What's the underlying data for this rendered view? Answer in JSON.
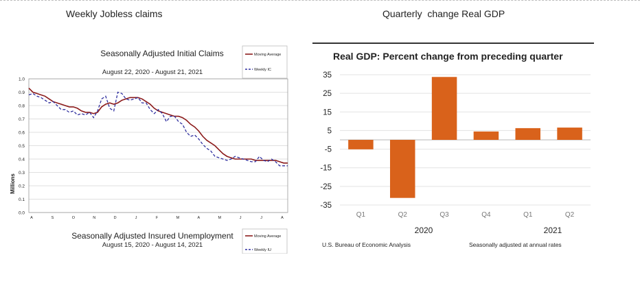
{
  "captions": {
    "left": "Weekly Jobless claims",
    "right": "Quarterly  change Real GDP"
  },
  "chart_data": [
    {
      "type": "line",
      "title": "Seasonally Adjusted Initial Claims",
      "subtitle": "August 22, 2020 - August 21, 2021",
      "ylabel": "Millions",
      "xlabel": "",
      "ylim": [
        0,
        1.0
      ],
      "yticks": [
        "0.0",
        "0.1",
        "0.2",
        "0.3",
        "0.4",
        "0.5",
        "0.6",
        "0.7",
        "0.8",
        "0.9",
        "1.0"
      ],
      "xticks": [
        "A",
        "S",
        "O",
        "N",
        "D",
        "J",
        "F",
        "M",
        "A",
        "M",
        "J",
        "J",
        "A"
      ],
      "grid": true,
      "legend": [
        "Moving Average",
        "Weekly IC"
      ],
      "series": [
        {
          "name": "Moving Average",
          "color": "#8b1a1a",
          "style": "solid",
          "values": [
            0.93,
            0.9,
            0.89,
            0.88,
            0.87,
            0.85,
            0.83,
            0.82,
            0.81,
            0.8,
            0.79,
            0.79,
            0.78,
            0.76,
            0.75,
            0.75,
            0.74,
            0.75,
            0.79,
            0.81,
            0.82,
            0.81,
            0.82,
            0.84,
            0.85,
            0.86,
            0.86,
            0.86,
            0.85,
            0.83,
            0.81,
            0.78,
            0.76,
            0.75,
            0.74,
            0.73,
            0.72,
            0.72,
            0.71,
            0.69,
            0.66,
            0.64,
            0.61,
            0.57,
            0.54,
            0.52,
            0.5,
            0.47,
            0.44,
            0.42,
            0.41,
            0.4,
            0.4,
            0.4,
            0.4,
            0.4,
            0.39,
            0.39,
            0.39,
            0.39,
            0.39,
            0.39,
            0.38,
            0.37,
            0.37
          ]
        },
        {
          "name": "Weekly IC",
          "color": "#2e2e9e",
          "style": "dashed",
          "values": [
            0.88,
            0.89,
            0.87,
            0.86,
            0.84,
            0.82,
            0.83,
            0.8,
            0.77,
            0.77,
            0.75,
            0.76,
            0.73,
            0.74,
            0.73,
            0.75,
            0.71,
            0.76,
            0.85,
            0.87,
            0.78,
            0.76,
            0.9,
            0.89,
            0.85,
            0.84,
            0.85,
            0.86,
            0.82,
            0.82,
            0.77,
            0.74,
            0.77,
            0.74,
            0.68,
            0.72,
            0.72,
            0.68,
            0.66,
            0.6,
            0.57,
            0.58,
            0.55,
            0.51,
            0.48,
            0.46,
            0.42,
            0.41,
            0.4,
            0.39,
            0.4,
            0.42,
            0.41,
            0.4,
            0.39,
            0.38,
            0.38,
            0.42,
            0.39,
            0.38,
            0.4,
            0.38,
            0.35,
            0.35,
            0.35
          ]
        }
      ],
      "footer_title": "Seasonally Adjusted Insured Unemployment",
      "footer_subtitle": "August 15, 2020 - August 14, 2021",
      "footer_legend": [
        "Moving Average",
        "Weekly IU"
      ]
    },
    {
      "type": "bar",
      "title": "Real GDP:  Percent change from preceding quarter",
      "categories": [
        "Q1",
        "Q2",
        "Q3",
        "Q4",
        "Q1",
        "Q2"
      ],
      "values": [
        -5.1,
        -31.2,
        33.8,
        4.5,
        6.3,
        6.6
      ],
      "year_labels": [
        "2020",
        "2021"
      ],
      "ylim": [
        -35,
        35
      ],
      "yticks": [
        "35",
        "25",
        "15",
        "5",
        "-5",
        "-15",
        "-25",
        "-35"
      ],
      "bar_color": "#d9621b",
      "xlabel": "",
      "ylabel": "",
      "source": "U.S. Bureau of Economic Analysis",
      "note": "Seasonally adjusted at annual rates"
    }
  ]
}
